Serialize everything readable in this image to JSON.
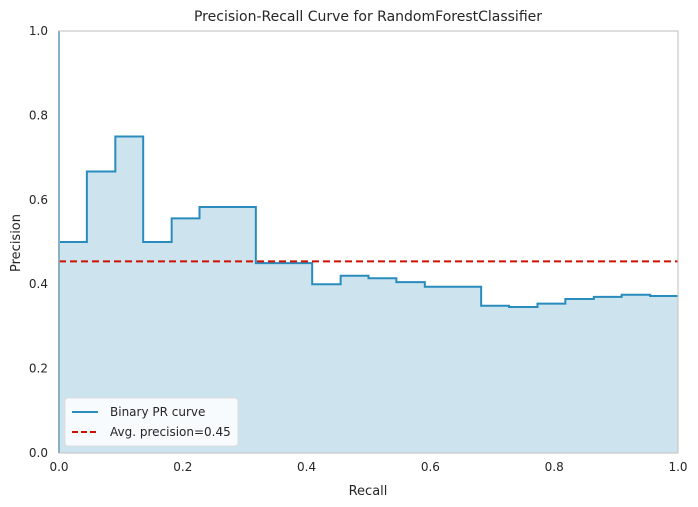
{
  "chart_data": {
    "type": "line",
    "title": "Precision-Recall Curve for RandomForestClassifier",
    "xlabel": "Recall",
    "ylabel": "Precision",
    "xlim": [
      0,
      1
    ],
    "ylim": [
      0,
      1
    ],
    "xticks": [
      0.0,
      0.2,
      0.4,
      0.6,
      0.8,
      1.0
    ],
    "xtick_labels": [
      "0.0",
      "0.2",
      "0.4",
      "0.6",
      "0.8",
      "1.0"
    ],
    "yticks": [
      0.0,
      0.2,
      0.4,
      0.6,
      0.8,
      1.0
    ],
    "ytick_labels": [
      "0.0",
      "0.2",
      "0.4",
      "0.6",
      "0.8",
      "1.0"
    ],
    "grid": false,
    "legend_position": "lower-left",
    "series": [
      {
        "name": "Binary PR curve",
        "style": "step",
        "fill": true,
        "color": "#2a8bbd",
        "fill_color": "#cde3ee",
        "points": [
          {
            "recall": 0.0,
            "precision": 0.5
          },
          {
            "recall": 0.045,
            "precision": 0.667
          },
          {
            "recall": 0.091,
            "precision": 0.75
          },
          {
            "recall": 0.136,
            "precision": 0.5
          },
          {
            "recall": 0.182,
            "precision": 0.556
          },
          {
            "recall": 0.227,
            "precision": 0.583
          },
          {
            "recall": 0.318,
            "precision": 0.45
          },
          {
            "recall": 0.409,
            "precision": 0.4
          },
          {
            "recall": 0.455,
            "precision": 0.42
          },
          {
            "recall": 0.5,
            "precision": 0.414
          },
          {
            "recall": 0.545,
            "precision": 0.405
          },
          {
            "recall": 0.591,
            "precision": 0.394
          },
          {
            "recall": 0.682,
            "precision": 0.349
          },
          {
            "recall": 0.727,
            "precision": 0.346
          },
          {
            "recall": 0.773,
            "precision": 0.354
          },
          {
            "recall": 0.818,
            "precision": 0.365
          },
          {
            "recall": 0.864,
            "precision": 0.37
          },
          {
            "recall": 0.909,
            "precision": 0.375
          },
          {
            "recall": 0.955,
            "precision": 0.372
          },
          {
            "recall": 1.0,
            "precision": 0.372
          }
        ]
      },
      {
        "name": "Avg. precision=0.45",
        "style": "dashed",
        "color": "#cc1100",
        "value": 0.454
      }
    ]
  }
}
